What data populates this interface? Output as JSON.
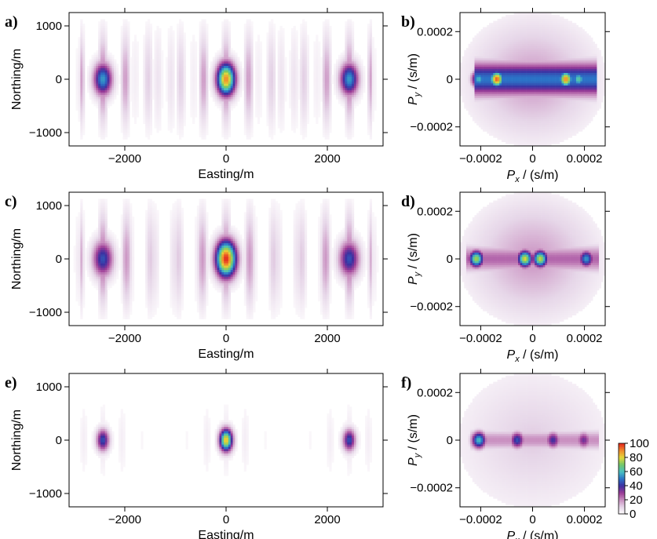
{
  "palette": [
    "#ffffff",
    "#e6d6e8",
    "#c98fc0",
    "#9c3b96",
    "#3d2fa0",
    "#2b74c8",
    "#49c0c2",
    "#73c76a",
    "#e4d93a",
    "#f08a2c",
    "#e3261e"
  ],
  "chart_data": [
    {
      "panel": "a)",
      "type": "heatmap",
      "kind": "map",
      "pattern": "broad",
      "xlabel": "Easting/m",
      "ylabel": "Northing/m",
      "xlim": [
        -3100,
        3100
      ],
      "ylim": [
        -1250,
        1250
      ],
      "x_ticks": [
        -2000,
        0,
        2000
      ],
      "x_tick_labels": [
        "−2000",
        "0",
        "2000"
      ],
      "y_ticks": [
        -1000,
        0,
        1000
      ],
      "y_tick_labels": [
        "−1000",
        "0",
        "1000"
      ],
      "sources": [
        {
          "x": 0,
          "y": 0,
          "peak": 90
        },
        {
          "x": -2450,
          "y": 0,
          "peak": 55
        },
        {
          "x": 2450,
          "y": 0,
          "peak": 55
        }
      ]
    },
    {
      "panel": "b)",
      "type": "heatmap",
      "kind": "slowness",
      "pattern": "broad",
      "xlabel": "Px / (s/m)",
      "ylabel": "Py / (s/m)",
      "xlim": [
        -0.00028,
        0.00028
      ],
      "ylim": [
        -0.00028,
        0.00028
      ],
      "x_ticks": [
        -0.0002,
        0,
        0.0002
      ],
      "x_tick_labels": [
        "−0.0002",
        "0",
        "0.0002"
      ],
      "y_ticks": [
        -0.0002,
        0,
        0.0002
      ],
      "y_tick_labels": [
        "−0.0002",
        "0",
        "0.0002"
      ],
      "band": {
        "x_min": -0.00023,
        "x_max": 0.00025,
        "y_half": 5e-05,
        "level": 50
      },
      "hotspots": [
        {
          "x": -0.00014,
          "y": 0.0,
          "peak": 95
        },
        {
          "x": 0.00013,
          "y": 0.0,
          "peak": 90
        },
        {
          "x": -0.00021,
          "y": 0.0,
          "peak": 60
        },
        {
          "x": 0.00018,
          "y": 0.0,
          "peak": 65
        }
      ]
    },
    {
      "panel": "c)",
      "type": "heatmap",
      "kind": "map",
      "pattern": "wide",
      "xlabel": "Easting/m",
      "ylabel": "Northing/m",
      "xlim": [
        -3100,
        3100
      ],
      "ylim": [
        -1250,
        1250
      ],
      "x_ticks": [
        -2000,
        0,
        2000
      ],
      "x_tick_labels": [
        "−2000",
        "0",
        "2000"
      ],
      "y_ticks": [
        -1000,
        0,
        1000
      ],
      "y_tick_labels": [
        "−1000",
        "0",
        "1000"
      ],
      "sources": [
        {
          "x": 0,
          "y": 0,
          "peak": 100
        },
        {
          "x": -2450,
          "y": 0,
          "peak": 45
        },
        {
          "x": 2450,
          "y": 0,
          "peak": 45
        }
      ]
    },
    {
      "panel": "d)",
      "type": "heatmap",
      "kind": "slowness",
      "pattern": "wide",
      "xlabel": "Px / (s/m)",
      "ylabel": "Py / (s/m)",
      "xlim": [
        -0.00028,
        0.00028
      ],
      "ylim": [
        -0.00028,
        0.00028
      ],
      "x_ticks": [
        -0.0002,
        0,
        0.0002
      ],
      "x_tick_labels": [
        "−0.0002",
        "0",
        "0.0002"
      ],
      "y_ticks": [
        -0.0002,
        0,
        0.0002
      ],
      "y_tick_labels": [
        "−0.0002",
        "0",
        "0.0002"
      ],
      "band": {
        "x_min": -0.00026,
        "x_max": 0.00026,
        "y_half": 4e-05,
        "level": 25
      },
      "hotspots": [
        {
          "x": -0.00022,
          "y": 0.0,
          "peak": 75
        },
        {
          "x": -3e-05,
          "y": 0.0,
          "peak": 80
        },
        {
          "x": 3e-05,
          "y": 0.0,
          "peak": 78
        },
        {
          "x": 0.00021,
          "y": 0.0,
          "peak": 55
        }
      ]
    },
    {
      "panel": "e)",
      "type": "heatmap",
      "kind": "map",
      "pattern": "sharp",
      "xlabel": "Easting/m",
      "ylabel": "Northing/m",
      "xlim": [
        -3100,
        3100
      ],
      "ylim": [
        -1250,
        1250
      ],
      "x_ticks": [
        -2000,
        0,
        2000
      ],
      "x_tick_labels": [
        "−2000",
        "0",
        "2000"
      ],
      "y_ticks": [
        -1000,
        0,
        1000
      ],
      "y_tick_labels": [
        "−1000",
        "0",
        "1000"
      ],
      "sources": [
        {
          "x": 0,
          "y": 0,
          "peak": 85
        },
        {
          "x": -2450,
          "y": 0,
          "peak": 45
        },
        {
          "x": 2450,
          "y": 0,
          "peak": 45
        }
      ]
    },
    {
      "panel": "f)",
      "type": "heatmap",
      "kind": "slowness",
      "pattern": "sharp",
      "xlabel": "Px / (s/m)",
      "ylabel": "Py / (s/m)",
      "xlim": [
        -0.00028,
        0.00028
      ],
      "ylim": [
        -0.00028,
        0.00028
      ],
      "x_ticks": [
        -0.0002,
        0,
        0.0002
      ],
      "x_tick_labels": [
        "−0.0002",
        "0",
        "0.0002"
      ],
      "y_ticks": [
        -0.0002,
        0,
        0.0002
      ],
      "y_tick_labels": [
        "−0.0002",
        "0",
        "0.0002"
      ],
      "band": {
        "x_min": -0.00024,
        "x_max": 0.00026,
        "y_half": 3e-05,
        "level": 20
      },
      "hotspots": [
        {
          "x": -0.00021,
          "y": 0.0,
          "peak": 60
        },
        {
          "x": -6e-05,
          "y": 0.0,
          "peak": 45
        },
        {
          "x": 8e-05,
          "y": 0.0,
          "peak": 40
        },
        {
          "x": 0.0002,
          "y": 0.0,
          "peak": 35
        }
      ]
    }
  ],
  "colorbar": {
    "range": [
      0,
      100
    ],
    "ticks": [
      0,
      20,
      40,
      60,
      80,
      100
    ],
    "tick_labels": [
      "0",
      "20",
      "40",
      "60",
      "80",
      "100"
    ]
  }
}
